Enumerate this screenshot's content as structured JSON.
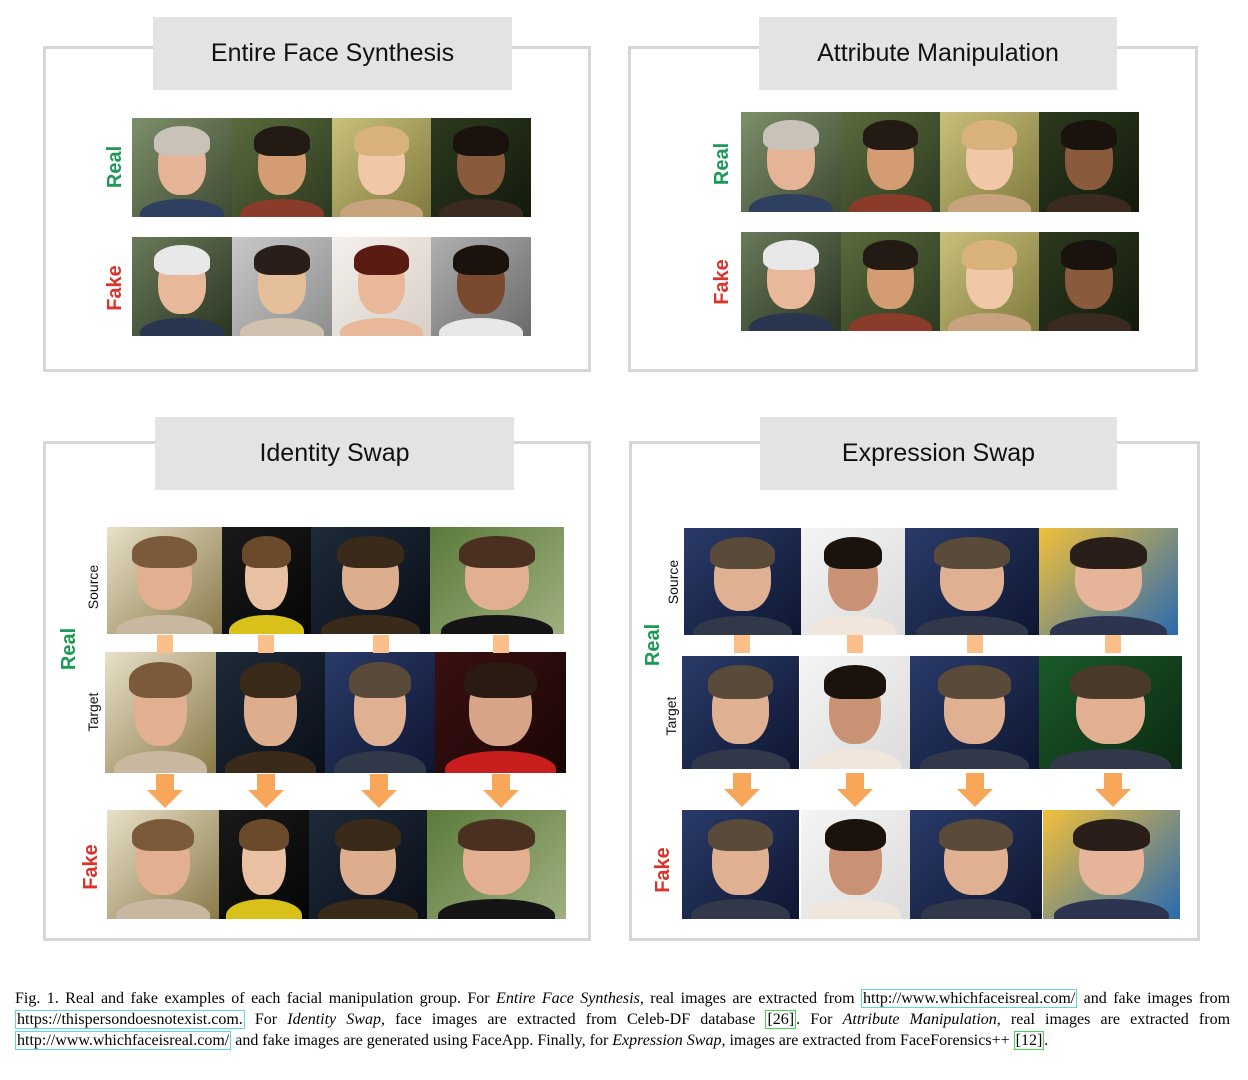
{
  "panels": {
    "efs": {
      "title": "Entire Face Synthesis",
      "real_label": "Real",
      "fake_label": "Fake"
    },
    "am": {
      "title": "Attribute Manipulation",
      "real_label": "Real",
      "fake_label": "Fake"
    },
    "is": {
      "title": "Identity Swap",
      "real_label": "Real",
      "fake_label": "Fake",
      "source_label": "Source",
      "target_label": "Target"
    },
    "es": {
      "title": "Expression Swap",
      "real_label": "Real",
      "fake_label": "Fake",
      "source_label": "Source",
      "target_label": "Target"
    }
  },
  "caption": {
    "lead": "Fig. 1.  Real and fake examples of each facial manipulation group. For ",
    "efs_name": "Entire Face Synthesis",
    "p1": ", real images are extracted from ",
    "url1": "http://www.whichfaceisreal.com/",
    "p2": " and fake images from ",
    "url2": "https://thispersondoesnotexist.com.",
    "p3": " For ",
    "is_name": "Identity Swap",
    "p4": ", face images are extracted from Celeb-DF database ",
    "ref1": "[26]",
    "p5": ". For ",
    "am_name": "Attribute Manipulation",
    "p6": ", real images are extracted from ",
    "url3": "http://www.whichfaceisreal.com/",
    "p7": " and fake images are generated using FaceApp. Finally, for ",
    "es_name": "Expression Swap",
    "p8": ", images are extracted from FaceForensics++ ",
    "ref2": "[12]",
    "p9": "."
  },
  "colors": {
    "real": "#1a9a52",
    "fake": "#d9332b",
    "arrow": "#f7a65a",
    "panel_border": "#d6d6d6",
    "title_bg": "#e3e3e3"
  }
}
